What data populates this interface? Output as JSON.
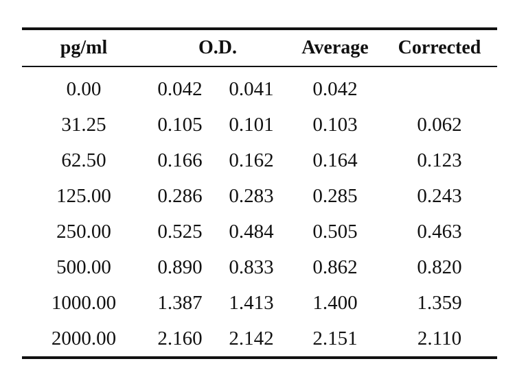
{
  "headers": {
    "concentration": "pg/ml",
    "od": "O.D.",
    "average": "Average",
    "corrected": "Corrected"
  },
  "rows": [
    {
      "conc": "0.00",
      "od1": "0.042",
      "od2": "0.041",
      "avg": "0.042",
      "cor": ""
    },
    {
      "conc": "31.25",
      "od1": "0.105",
      "od2": "0.101",
      "avg": "0.103",
      "cor": "0.062"
    },
    {
      "conc": "62.50",
      "od1": "0.166",
      "od2": "0.162",
      "avg": "0.164",
      "cor": "0.123"
    },
    {
      "conc": "125.00",
      "od1": "0.286",
      "od2": "0.283",
      "avg": "0.285",
      "cor": "0.243"
    },
    {
      "conc": "250.00",
      "od1": "0.525",
      "od2": "0.484",
      "avg": "0.505",
      "cor": "0.463"
    },
    {
      "conc": "500.00",
      "od1": "0.890",
      "od2": "0.833",
      "avg": "0.862",
      "cor": "0.820"
    },
    {
      "conc": "1000.00",
      "od1": "1.387",
      "od2": "1.413",
      "avg": "1.400",
      "cor": "1.359"
    },
    {
      "conc": "2000.00",
      "od1": "2.160",
      "od2": "2.142",
      "avg": "2.151",
      "cor": "2.110"
    }
  ]
}
